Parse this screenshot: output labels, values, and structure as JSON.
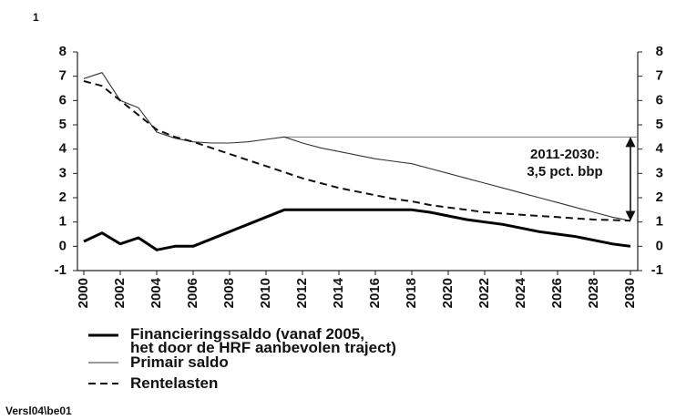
{
  "chart_data": {
    "type": "line",
    "page_label": "1",
    "footer": "Versl04\\be01",
    "x": [
      2000,
      2001,
      2002,
      2003,
      2004,
      2005,
      2006,
      2007,
      2008,
      2009,
      2010,
      2011,
      2012,
      2013,
      2014,
      2015,
      2016,
      2017,
      2018,
      2019,
      2020,
      2021,
      2022,
      2023,
      2024,
      2025,
      2026,
      2027,
      2028,
      2029,
      2030
    ],
    "xlim": [
      2000,
      2030
    ],
    "xticks": [
      2000,
      2002,
      2004,
      2006,
      2008,
      2010,
      2012,
      2014,
      2016,
      2018,
      2020,
      2022,
      2024,
      2026,
      2028,
      2030
    ],
    "ylim": [
      -1,
      8
    ],
    "yticks": [
      -1,
      0,
      1,
      2,
      3,
      4,
      5,
      6,
      7,
      8
    ],
    "y2lim": [
      -1,
      8
    ],
    "y2ticks": [
      -1,
      0,
      1,
      2,
      3,
      4,
      5,
      6,
      7,
      8
    ],
    "series": [
      {
        "name": "Financieringssaldo (vanaf 2005,\nhet door de HRF aanbevolen traject)",
        "color": "#000000",
        "style": "thick",
        "values": [
          0.2,
          0.55,
          0.1,
          0.35,
          -0.15,
          0,
          0,
          0.3,
          0.6,
          0.9,
          1.2,
          1.5,
          1.5,
          1.5,
          1.5,
          1.5,
          1.5,
          1.5,
          1.5,
          1.4,
          1.25,
          1.1,
          1.0,
          0.9,
          0.75,
          0.6,
          0.5,
          0.4,
          0.25,
          0.1,
          0
        ]
      },
      {
        "name": "Primair saldo",
        "color": "#333333",
        "style": "thin",
        "values": [
          6.9,
          7.15,
          6.0,
          5.7,
          4.7,
          4.45,
          4.3,
          4.25,
          4.25,
          4.3,
          4.4,
          4.5,
          4.25,
          4.05,
          3.9,
          3.75,
          3.6,
          3.5,
          3.4,
          3.2,
          3.0,
          2.8,
          2.6,
          2.4,
          2.2,
          2.0,
          1.8,
          1.6,
          1.4,
          1.2,
          1.05
        ]
      },
      {
        "name": "Rentelasten",
        "color": "#111111",
        "style": "dashed",
        "values": [
          6.8,
          6.6,
          6.0,
          5.4,
          4.8,
          4.5,
          4.3,
          4.05,
          3.8,
          3.55,
          3.3,
          3.05,
          2.8,
          2.6,
          2.4,
          2.25,
          2.1,
          1.95,
          1.85,
          1.7,
          1.6,
          1.5,
          1.4,
          1.35,
          1.3,
          1.25,
          1.2,
          1.15,
          1.1,
          1.08,
          1.05
        ]
      }
    ],
    "annotations": [
      "2011-2030:",
      "3,5 pct. bbp"
    ]
  }
}
